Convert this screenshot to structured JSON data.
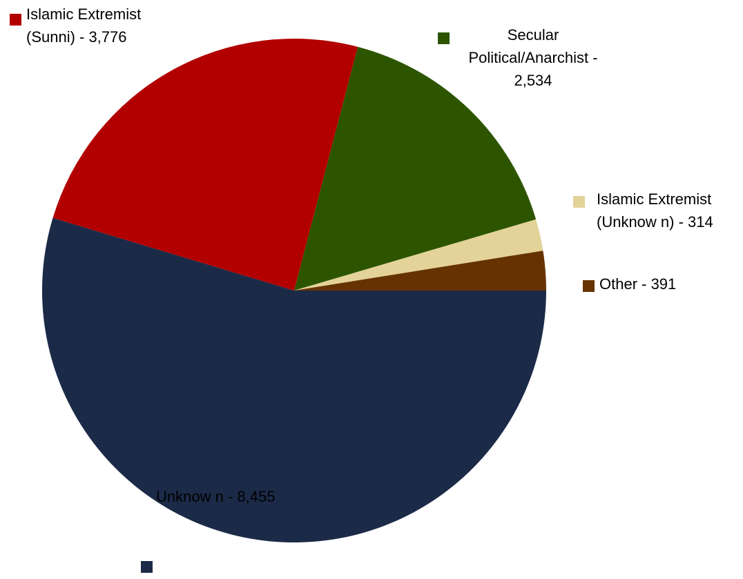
{
  "chart_data": {
    "type": "pie",
    "title": "",
    "slices": [
      {
        "label": "Unknown",
        "value": 8455,
        "label_text": "Unknow n - 8,455",
        "color": "#1b2a47"
      },
      {
        "label": "Islamic Extremist (Sunni)",
        "value": 3776,
        "label_text": "Islamic Extremist (Sunni) - 3,776",
        "color": "#b20000"
      },
      {
        "label": "Secular Political/Anarchist",
        "value": 2534,
        "label_text": "Secular Political/Anarchist - 2,534",
        "color": "#2d5500"
      },
      {
        "label": "Islamic Extremist (Unknown)",
        "value": 314,
        "label_text": "Islamic Extremist (Unknow n) - 314",
        "color": "#e3d398"
      },
      {
        "label": "Other",
        "value": 391,
        "label_text": "Other - 391",
        "color": "#663300"
      }
    ],
    "start_angle_deg": 0,
    "direction": "clockwise",
    "legend": "none",
    "data_labels": "outside-with-swatch"
  }
}
